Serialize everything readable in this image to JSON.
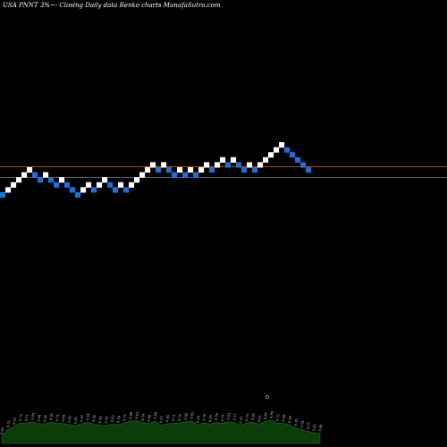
{
  "title": "USA PNNT 3%~- Closing Daily data Renko charts MunafaSutra.com",
  "colors": {
    "background": "#000000",
    "up_brick": "#ffffff",
    "down_brick": "#1e6fd9",
    "resistance_line": "#9a4d1c",
    "volume_fill": "#0b3d0b",
    "volume_edge": "#1f7a1f"
  },
  "chart_data": {
    "type": "renko",
    "brick_size_pct": 3,
    "bricks": [
      "down",
      "up",
      "up",
      "up",
      "up",
      "up",
      "down",
      "down",
      "up",
      "down",
      "down",
      "up",
      "down",
      "down",
      "down",
      "up",
      "up",
      "down",
      "up",
      "up",
      "down",
      "down",
      "up",
      "down",
      "up",
      "up",
      "up",
      "up",
      "up",
      "down",
      "up",
      "down",
      "down",
      "up",
      "down",
      "up",
      "down",
      "up",
      "up",
      "down",
      "up",
      "up",
      "down",
      "up",
      "down",
      "down",
      "up",
      "down",
      "up",
      "up",
      "up",
      "up",
      "up",
      "down",
      "down",
      "down",
      "down",
      "down"
    ],
    "horizontal_lines": [
      {
        "label": "upper",
        "style": "solid"
      },
      {
        "label": "lower",
        "style": "solid"
      }
    ],
    "volume_labels": [
      "5.65",
      "6.21",
      "6.44",
      "6.73",
      "6.71",
      "6.83",
      "6.68",
      "6.66",
      "6.81",
      "6.71",
      "6.69",
      "6.61",
      "6.50",
      "6.67",
      "6.78",
      "6.66",
      "6.56",
      "6.54",
      "6.63",
      "6.59",
      "6.72",
      "6.88",
      "6.91",
      "6.74",
      "6.68",
      "6.89",
      "6.57",
      "6.66",
      "6.71",
      "6.73",
      "6.82",
      "6.91",
      "6.58",
      "6.76",
      "6.65",
      "6.79",
      "6.70",
      "6.83",
      "6.77",
      "6.52",
      "6.74",
      "6.81",
      "6.62",
      "6.86",
      "6.96",
      "6.72",
      "6.69",
      "6.58",
      "6.35",
      "6.19",
      "6.07",
      "5.92",
      "5.89"
    ]
  }
}
